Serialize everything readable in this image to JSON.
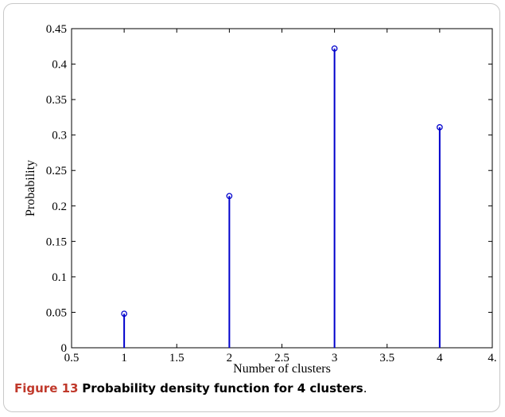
{
  "chart_data": {
    "type": "stem",
    "x": [
      1,
      2,
      3,
      4
    ],
    "values": [
      0.048,
      0.214,
      0.422,
      0.311
    ],
    "xlabel": "Number of clusters",
    "ylabel": "Probability",
    "xlim": [
      0.5,
      4.5
    ],
    "ylim": [
      0,
      0.45
    ],
    "xticks": [
      "0.5",
      "1",
      "1.5",
      "2",
      "2.5",
      "3",
      "3.5",
      "4",
      "4."
    ],
    "yticks": [
      "0",
      "0.05",
      "0.1",
      "0.15",
      "0.2",
      "0.25",
      "0.3",
      "0.35",
      "0.4",
      "0.45"
    ],
    "series_color": "#0000cc",
    "grid": false
  },
  "caption": {
    "number": "Figure 13",
    "text": "Probability density function for 4 clusters",
    "period": "."
  }
}
